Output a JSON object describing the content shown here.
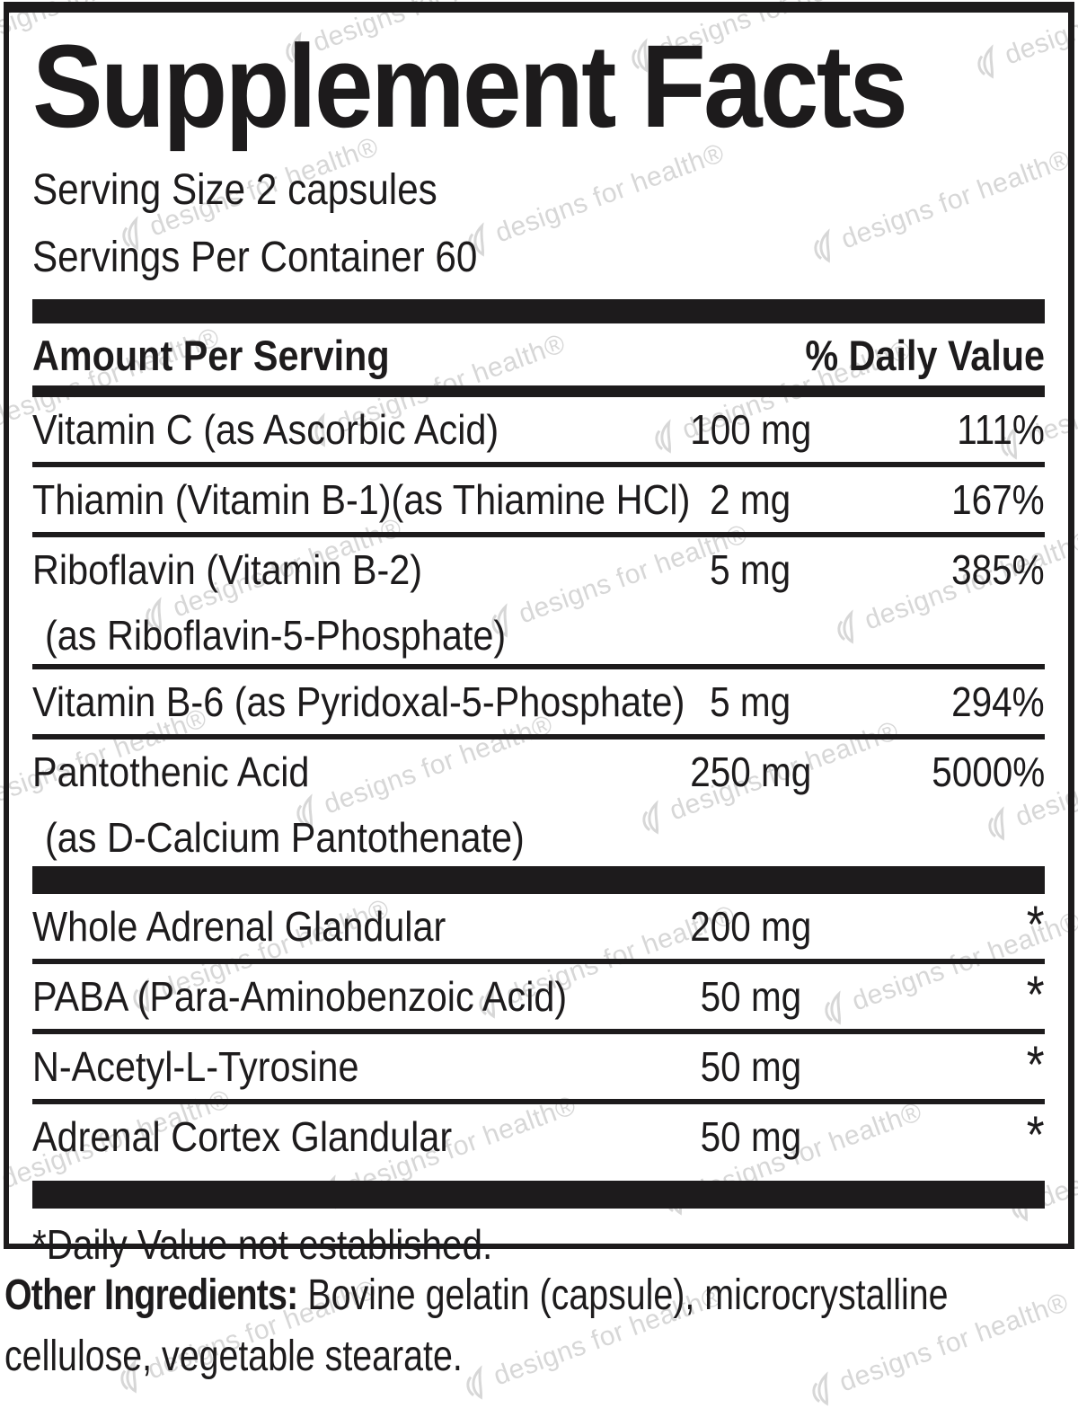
{
  "title": "Supplement Facts",
  "serving": {
    "size": "Serving Size 2 capsules",
    "per_container": "Servings Per Container 60"
  },
  "table": {
    "header": {
      "amount": "Amount Per Serving",
      "daily_value": "% Daily Value"
    },
    "rows": [
      {
        "name": "Vitamin C (as Ascorbic Acid)",
        "amount": "100 mg",
        "dv": "111%"
      },
      {
        "name": "Thiamin (Vitamin B-1)(as Thiamine HCl)",
        "amount": "2 mg",
        "dv": "167%"
      },
      {
        "name": "Riboflavin (Vitamin B-2)",
        "name2": "(as Riboflavin-5-Phosphate)",
        "amount": "5 mg",
        "dv": "385%"
      },
      {
        "name": "Vitamin B-6 (as Pyridoxal-5-Phosphate)",
        "amount": "5 mg",
        "dv": "294%"
      },
      {
        "name": "Pantothenic Acid",
        "name2": "(as D-Calcium Pantothenate)",
        "amount": "250 mg",
        "dv": "5000%"
      }
    ],
    "rows_no_dv": [
      {
        "name": "Whole Adrenal Glandular",
        "amount": "200 mg",
        "dv": "*"
      },
      {
        "name": "PABA (Para-Aminobenzoic Acid)",
        "amount": "50 mg",
        "dv": "*"
      },
      {
        "name": "N-Acetyl-L-Tyrosine",
        "amount": "50 mg",
        "dv": "*"
      },
      {
        "name": "Adrenal Cortex Glandular",
        "amount": "50 mg",
        "dv": "*"
      }
    ],
    "footnote": "*Daily Value not established."
  },
  "other_ingredients": {
    "label": "Other Ingredients:",
    "text": " Bovine gelatin (capsule), microcrystalline cellulose, vegetable stearate."
  },
  "watermark": {
    "text": "designs for health®"
  },
  "colors": {
    "ink": "#1d1b1c",
    "watermark": "#d7d7d7"
  }
}
